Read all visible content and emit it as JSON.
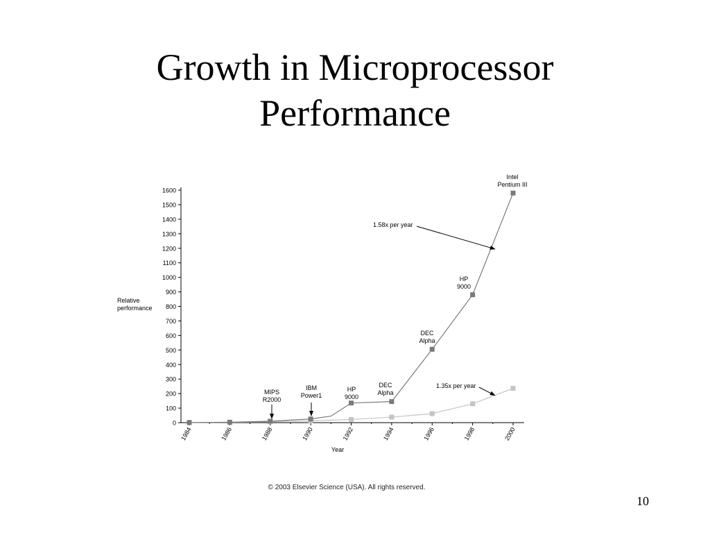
{
  "slide": {
    "title_line1": "Growth in Microprocessor",
    "title_line2": "Performance",
    "copyright": "© 2003 Elsevier Science (USA). All rights reserved.",
    "page_number": "10"
  },
  "chart_data": {
    "type": "line",
    "title": "",
    "xlabel": "Year",
    "ylabel_lines": [
      "Relative",
      "performance"
    ],
    "xlim": [
      1984,
      2000
    ],
    "ylim": [
      0,
      1600
    ],
    "x_ticks": [
      "1984",
      "1986",
      "1988",
      "1990",
      "1992",
      "1994",
      "1996",
      "1998",
      "2000"
    ],
    "y_ticks": [
      "0",
      "100",
      "200",
      "300",
      "400",
      "500",
      "600",
      "700",
      "800",
      "900",
      "1000",
      "1100",
      "1200",
      "1300",
      "1400",
      "1500",
      "1600"
    ],
    "grid": false,
    "series": [
      {
        "color": "#7a7a7a",
        "points": [
          {
            "x": 1984,
            "y": 1,
            "marker": true
          },
          {
            "x": 1986,
            "y": 3,
            "marker": true
          },
          {
            "x": 1988,
            "y": 10,
            "marker": true
          },
          {
            "x": 1990,
            "y": 25,
            "marker": true
          },
          {
            "x": 1991,
            "y": 45,
            "marker": false
          },
          {
            "x": 1992,
            "y": 135,
            "marker": true
          },
          {
            "x": 1994,
            "y": 145,
            "marker": true
          },
          {
            "x": 1996,
            "y": 505,
            "marker": true
          },
          {
            "x": 1998,
            "y": 880,
            "marker": true
          },
          {
            "x": 2000,
            "y": 1580,
            "marker": true
          }
        ]
      },
      {
        "color": "#c4c4c4",
        "points": [
          {
            "x": 1984,
            "y": 1,
            "marker": true
          },
          {
            "x": 1986,
            "y": 2,
            "marker": true
          },
          {
            "x": 1988,
            "y": 6,
            "marker": true
          },
          {
            "x": 1990,
            "y": 12,
            "marker": true
          },
          {
            "x": 1992,
            "y": 22,
            "marker": true
          },
          {
            "x": 1994,
            "y": 38,
            "marker": true
          },
          {
            "x": 1996,
            "y": 62,
            "marker": true
          },
          {
            "x": 1998,
            "y": 130,
            "marker": true
          },
          {
            "x": 2000,
            "y": 236,
            "marker": true
          }
        ]
      }
    ],
    "annotations": [
      {
        "lines": [
          "MIPS",
          "R2000"
        ],
        "x": 1988,
        "y": 10,
        "arrow": true
      },
      {
        "lines": [
          "IBM",
          "Power1"
        ],
        "x": 1990,
        "y": 25,
        "arrow": true
      },
      {
        "lines": [
          "HP",
          "9000"
        ],
        "x": 1992,
        "y": 135,
        "arrow": false
      },
      {
        "lines": [
          "DEC",
          "Alpha"
        ],
        "x": 1994,
        "y": 145,
        "arrow": false
      },
      {
        "lines": [
          "DEC",
          "Alpha"
        ],
        "x": 1996,
        "y": 505,
        "arrow": false
      },
      {
        "lines": [
          "HP",
          "9000"
        ],
        "x": 1998,
        "y": 880,
        "arrow": false
      },
      {
        "lines": [
          "Intel",
          "Pentium III"
        ],
        "x": 2000,
        "y": 1580,
        "arrow": false
      }
    ],
    "rate_labels": [
      {
        "text": "1.58x per year",
        "series": 0,
        "target_x": 1999.1,
        "target_y": 1195
      },
      {
        "text": "1.35x per year",
        "series": 1,
        "target_x": 1999.1,
        "target_y": 188
      }
    ]
  }
}
